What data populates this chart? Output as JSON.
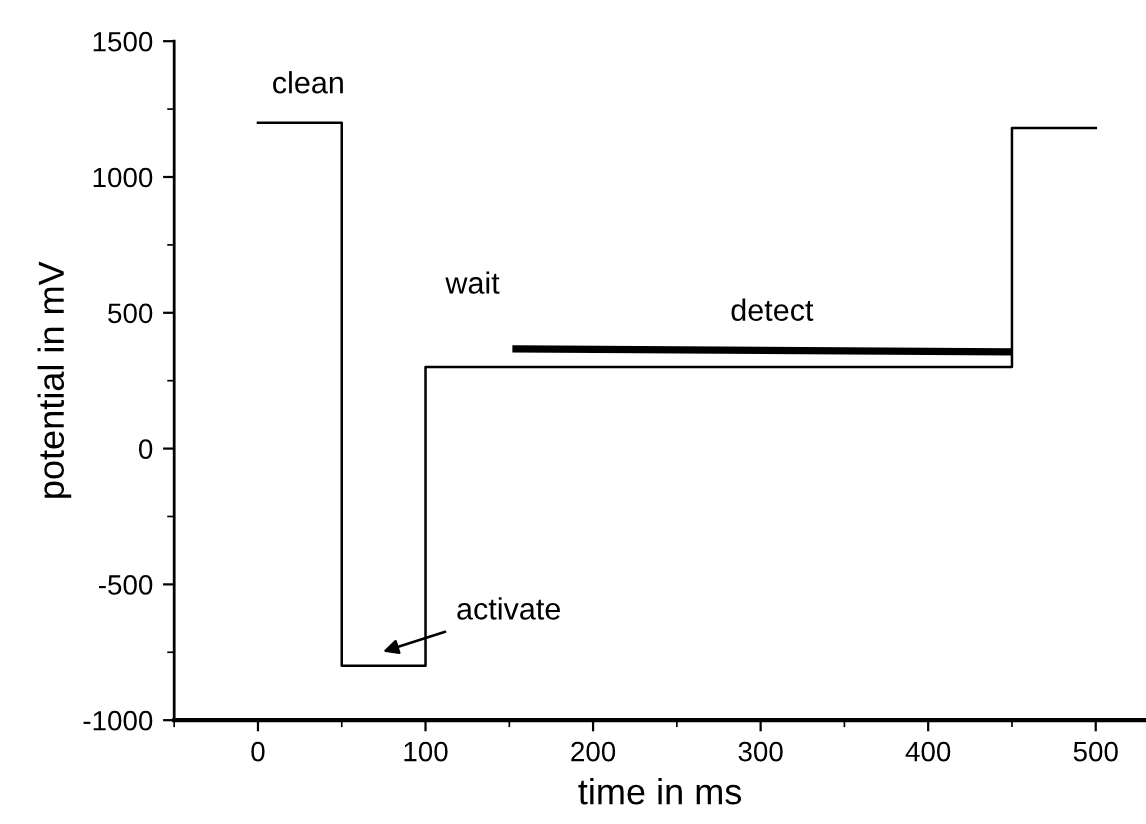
{
  "chart_data": {
    "type": "line",
    "xlabel": "time in ms",
    "ylabel": "potential in mV",
    "xlim": [
      -50,
      530
    ],
    "xticks": [
      0,
      100,
      200,
      300,
      400,
      500
    ],
    "ylim": [
      -1000,
      1500
    ],
    "yticks": [
      -1000,
      -500,
      0,
      500,
      1000,
      1500
    ],
    "grid": false,
    "series": [
      {
        "color": "#000000",
        "x": [
          0,
          50,
          50,
          100,
          100,
          450,
          450,
          500
        ],
        "values": [
          1200,
          1200,
          -800,
          -800,
          300,
          300,
          1180,
          1180
        ]
      },
      {
        "color": "#000000",
        "x": [
          154,
          448
        ],
        "values": [
          367,
          356
        ]
      }
    ],
    "annotations": [
      "clean",
      "wait",
      "detect",
      "activate"
    ]
  }
}
